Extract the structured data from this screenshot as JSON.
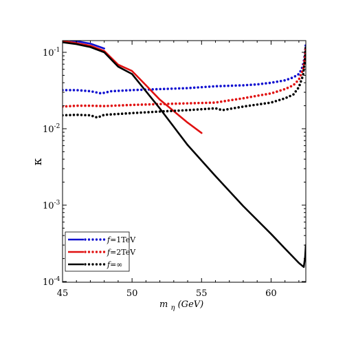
{
  "chart_data": {
    "type": "line",
    "xlabel_main": "m",
    "xlabel_sub": "η",
    "xlabel_tail": "(GeV)",
    "ylabel": "κ",
    "xlim": [
      45,
      62.5
    ],
    "ylim": [
      0.0001,
      0.15
    ],
    "y_scale": "log",
    "grid": false,
    "legend_position": "bottom-left",
    "x_ticks": [
      45,
      50,
      55,
      60
    ],
    "y_ticks": [
      {
        "value": 0.1,
        "base": "10",
        "exp": "-1"
      },
      {
        "value": 0.01,
        "base": "10",
        "exp": "-2"
      },
      {
        "value": 0.001,
        "base": "10",
        "exp": "-3"
      },
      {
        "value": 0.0001,
        "base": "10",
        "exp": "-4"
      }
    ],
    "series": [
      {
        "name": "f=1TeV",
        "legend_italic": "f",
        "legend_rest": "=1TeV",
        "style": "solid",
        "color": "#1010d0",
        "x": [
          45,
          46,
          47,
          48
        ],
        "y": [
          0.148,
          0.14,
          0.13,
          0.112
        ]
      },
      {
        "name": "f=1TeV",
        "style": "dotted",
        "color": "#1010d0",
        "x": [
          45,
          46,
          47,
          47.8,
          48.5,
          50,
          52,
          54,
          56,
          58,
          59,
          60,
          61,
          61.6,
          62,
          62.2,
          62.35,
          62.45,
          62.5
        ],
        "y": [
          0.032,
          0.032,
          0.031,
          0.029,
          0.031,
          0.032,
          0.033,
          0.034,
          0.036,
          0.037,
          0.038,
          0.04,
          0.043,
          0.047,
          0.052,
          0.06,
          0.075,
          0.1,
          0.13
        ]
      },
      {
        "name": "f=2TeV",
        "legend_italic": "f",
        "legend_rest": "=2TeV",
        "style": "solid",
        "color": "#e01010",
        "x": [
          45,
          46,
          47,
          48,
          49,
          50,
          51,
          52,
          53,
          54,
          55
        ],
        "y": [
          0.14,
          0.132,
          0.122,
          0.104,
          0.069,
          0.057,
          0.037,
          0.024,
          0.017,
          0.012,
          0.0088
        ]
      },
      {
        "name": "f=2TeV",
        "style": "dotted",
        "color": "#e01010",
        "x": [
          45,
          46,
          47,
          48,
          50,
          52,
          54,
          56,
          57,
          58,
          59,
          60,
          61,
          61.6,
          62,
          62.3,
          62.45,
          62.5
        ],
        "y": [
          0.0195,
          0.02,
          0.02,
          0.0198,
          0.0205,
          0.021,
          0.0215,
          0.022,
          0.0235,
          0.025,
          0.027,
          0.029,
          0.033,
          0.037,
          0.044,
          0.06,
          0.09,
          0.12
        ]
      },
      {
        "name": "f=∞",
        "legend_italic": "f",
        "legend_rest": "=∞",
        "style": "solid",
        "color": "#000000",
        "x": [
          45,
          46,
          47,
          48,
          49,
          50,
          52,
          54,
          56,
          58,
          60,
          61,
          62,
          62.35,
          62.45,
          62.5
        ],
        "y": [
          0.135,
          0.128,
          0.117,
          0.1,
          0.065,
          0.052,
          0.0184,
          0.0061,
          0.0024,
          0.00097,
          0.00042,
          0.00027,
          0.000175,
          0.000155,
          0.00021,
          0.0003
        ]
      },
      {
        "name": "f=∞",
        "style": "dotted",
        "color": "#000000",
        "x": [
          45,
          46,
          47,
          47.5,
          48,
          50,
          52,
          54,
          56,
          56.5,
          58,
          60,
          61,
          61.6,
          62,
          62.3,
          62.45,
          62.5
        ],
        "y": [
          0.015,
          0.0152,
          0.015,
          0.014,
          0.0152,
          0.016,
          0.0168,
          0.0175,
          0.0185,
          0.0175,
          0.0195,
          0.022,
          0.025,
          0.028,
          0.035,
          0.05,
          0.085,
          0.12
        ]
      }
    ]
  }
}
